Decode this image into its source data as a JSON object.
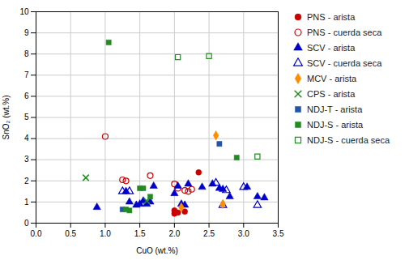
{
  "chart_data": {
    "type": "scatter",
    "xlabel": "CuO (wt.%)",
    "ylabel": "SnO₂ (wt.%)",
    "xlim": [
      0.0,
      3.5
    ],
    "ylim": [
      0.0,
      10.0
    ],
    "xticks": [
      {
        "value": 0.0,
        "label": "0.0"
      },
      0.5,
      {
        "value": 1.0,
        "label": "1.0"
      },
      1.5,
      {
        "value": 2.0,
        "label": "2.0"
      },
      2.5,
      {
        "value": 3.0,
        "label": "3.0"
      },
      3.5
    ],
    "yticks": [
      0,
      1,
      2,
      3,
      4,
      5,
      6,
      7,
      8,
      9,
      10
    ],
    "grid": true,
    "legend": "right",
    "series": [
      {
        "name": "PNS - arista",
        "color": "#cc0000",
        "marker": "circle",
        "x": [
          2.35,
          2.05,
          2.0,
          2.15,
          2.0
        ],
        "values": [
          2.4,
          0.5,
          0.6,
          0.55,
          0.45
        ]
      },
      {
        "name": "PNS - cuerda seca",
        "color": "#cc0000",
        "marker": "circle_open",
        "x": [
          1.0,
          1.25,
          1.3,
          1.65,
          2.0,
          2.05,
          2.2,
          2.15,
          2.25
        ],
        "values": [
          4.1,
          2.05,
          2.0,
          2.25,
          1.85,
          1.65,
          1.5,
          1.55,
          1.6
        ]
      },
      {
        "name": "SCV - arista",
        "color": "#0000cc",
        "marker": "triangle",
        "x": [
          0.88,
          1.3,
          1.35,
          1.45,
          1.5,
          1.55,
          1.6,
          1.65,
          1.7,
          2.0,
          2.05,
          2.1,
          2.15,
          2.2,
          2.4,
          2.55,
          2.65,
          2.7,
          2.8,
          3.05,
          3.2,
          3.3
        ],
        "values": [
          0.75,
          1.5,
          1.0,
          0.85,
          0.9,
          1.05,
          0.9,
          1.0,
          1.75,
          1.4,
          1.75,
          0.9,
          0.85,
          1.85,
          1.7,
          1.85,
          1.65,
          1.6,
          1.25,
          1.7,
          1.25,
          1.2
        ]
      },
      {
        "name": "SCV - cuerda seca",
        "color": "#0000cc",
        "marker": "triangle_open",
        "x": [
          1.25,
          1.35,
          2.6,
          2.7,
          2.75,
          3.0,
          3.2
        ],
        "values": [
          1.5,
          1.5,
          1.9,
          0.85,
          1.55,
          1.7,
          0.85
        ]
      },
      {
        "name": "MCV - arista",
        "color": "#ff8c00",
        "marker": "diamond",
        "x": [
          2.1,
          2.6,
          2.7
        ],
        "values": [
          0.75,
          4.15,
          0.9
        ]
      },
      {
        "name": "CPS - arista",
        "color": "#228B22",
        "marker": "x",
        "x": [
          0.72,
          1.6
        ],
        "values": [
          2.15,
          1.05
        ]
      },
      {
        "name": "NDJ-T - arista",
        "color": "#2255aa",
        "marker": "square",
        "x": [
          1.25,
          2.65
        ],
        "values": [
          0.65,
          3.75
        ]
      },
      {
        "name": "NDJ-S - arista",
        "color": "#228B22",
        "marker": "square",
        "x": [
          1.05,
          1.3,
          1.35,
          1.5,
          1.55,
          1.65,
          2.9
        ],
        "values": [
          8.55,
          0.65,
          0.6,
          1.65,
          1.65,
          1.25,
          3.1
        ]
      },
      {
        "name": "NDJ-S - cuerda seca",
        "color": "#228B22",
        "marker": "square_open",
        "x": [
          2.05,
          2.5,
          3.2
        ],
        "values": [
          7.85,
          7.9,
          3.15
        ]
      }
    ]
  }
}
